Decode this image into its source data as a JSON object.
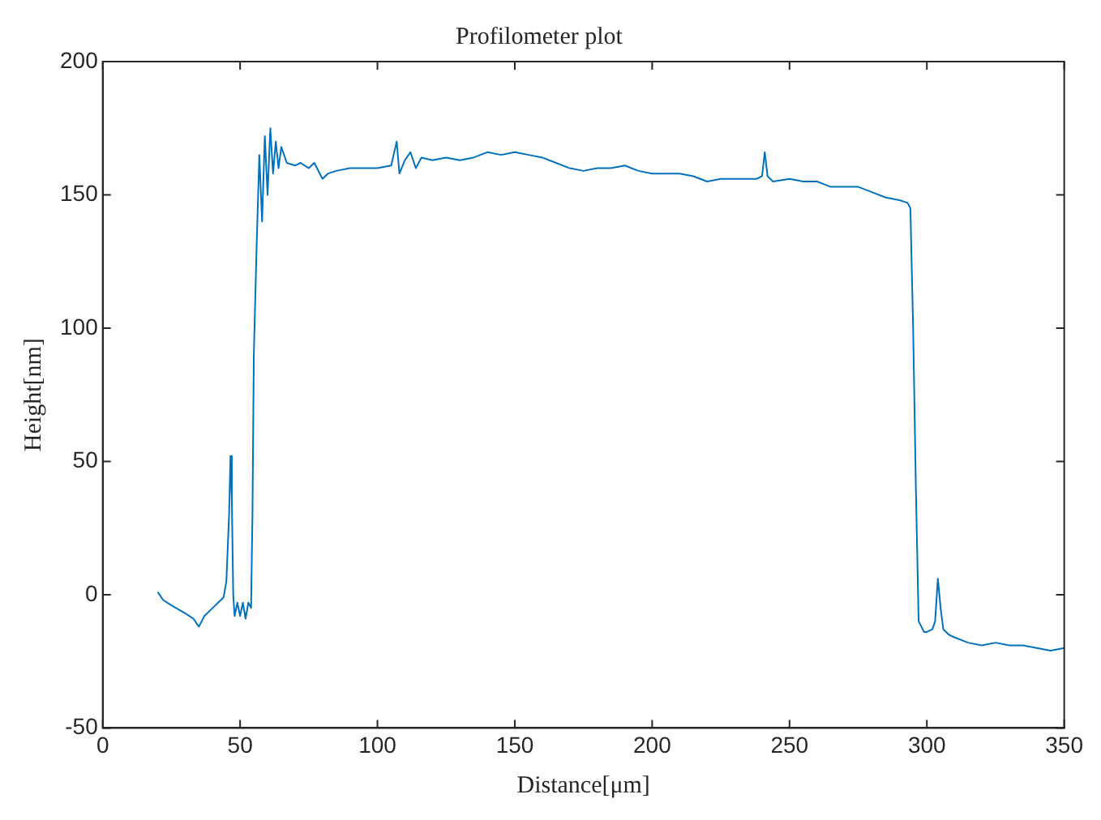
{
  "chart_data": {
    "type": "line",
    "title": "Profilometer plot",
    "xlabel": "Distance[μm]",
    "ylabel": "Height[nm]",
    "xlim": [
      0,
      350
    ],
    "xticks": [
      0,
      50,
      100,
      150,
      200,
      250,
      300,
      350
    ],
    "ylim": [
      -50,
      200
    ],
    "yticks": [
      -50,
      0,
      50,
      100,
      150,
      200
    ],
    "grid": false,
    "legend": false,
    "marker": "none",
    "line_style": "solid",
    "series": [
      {
        "color": "#0072bd",
        "x": [
          20,
          22,
          25,
          30,
          33,
          35,
          37,
          40,
          42,
          44,
          45,
          46,
          46.5,
          47,
          47.5,
          48,
          49,
          50,
          51,
          52,
          53,
          54,
          54.5,
          55,
          56,
          57,
          58,
          59,
          60,
          61,
          62,
          63,
          64,
          65,
          67,
          70,
          72,
          75,
          77,
          80,
          82,
          85,
          90,
          95,
          100,
          105,
          107,
          108,
          110,
          112,
          114,
          116,
          120,
          125,
          130,
          135,
          140,
          145,
          150,
          155,
          160,
          165,
          170,
          175,
          180,
          185,
          190,
          195,
          200,
          205,
          210,
          215,
          220,
          225,
          230,
          235,
          238,
          240,
          241,
          242,
          244,
          250,
          255,
          260,
          265,
          270,
          275,
          280,
          285,
          290,
          293,
          294,
          295,
          296,
          297,
          298,
          299,
          300,
          302,
          303,
          304,
          305,
          306,
          308,
          310,
          315,
          320,
          325,
          330,
          335,
          340,
          345,
          350
        ],
        "values": [
          1,
          -2,
          -4,
          -7,
          -9,
          -12,
          -8,
          -5,
          -3,
          -1,
          5,
          30,
          52,
          35,
          0,
          -8,
          -3,
          -8,
          -3,
          -9,
          -3,
          -5,
          30,
          90,
          130,
          165,
          140,
          172,
          150,
          175,
          158,
          170,
          160,
          168,
          162,
          161,
          162,
          160,
          162,
          156,
          158,
          159,
          160,
          160,
          160,
          161,
          170,
          158,
          163,
          166,
          160,
          164,
          163,
          164,
          163,
          164,
          166,
          165,
          166,
          165,
          164,
          162,
          160,
          159,
          160,
          160,
          161,
          159,
          158,
          158,
          158,
          157,
          155,
          156,
          156,
          156,
          156,
          157,
          166,
          157,
          155,
          156,
          155,
          155,
          153,
          153,
          153,
          151,
          149,
          148,
          147,
          145,
          100,
          40,
          -10,
          -12,
          -14,
          -14,
          -13,
          -10,
          6,
          -5,
          -13,
          -15,
          -16,
          -18,
          -19,
          -18,
          -19,
          -19,
          -20,
          -21,
          -20
        ]
      }
    ]
  }
}
